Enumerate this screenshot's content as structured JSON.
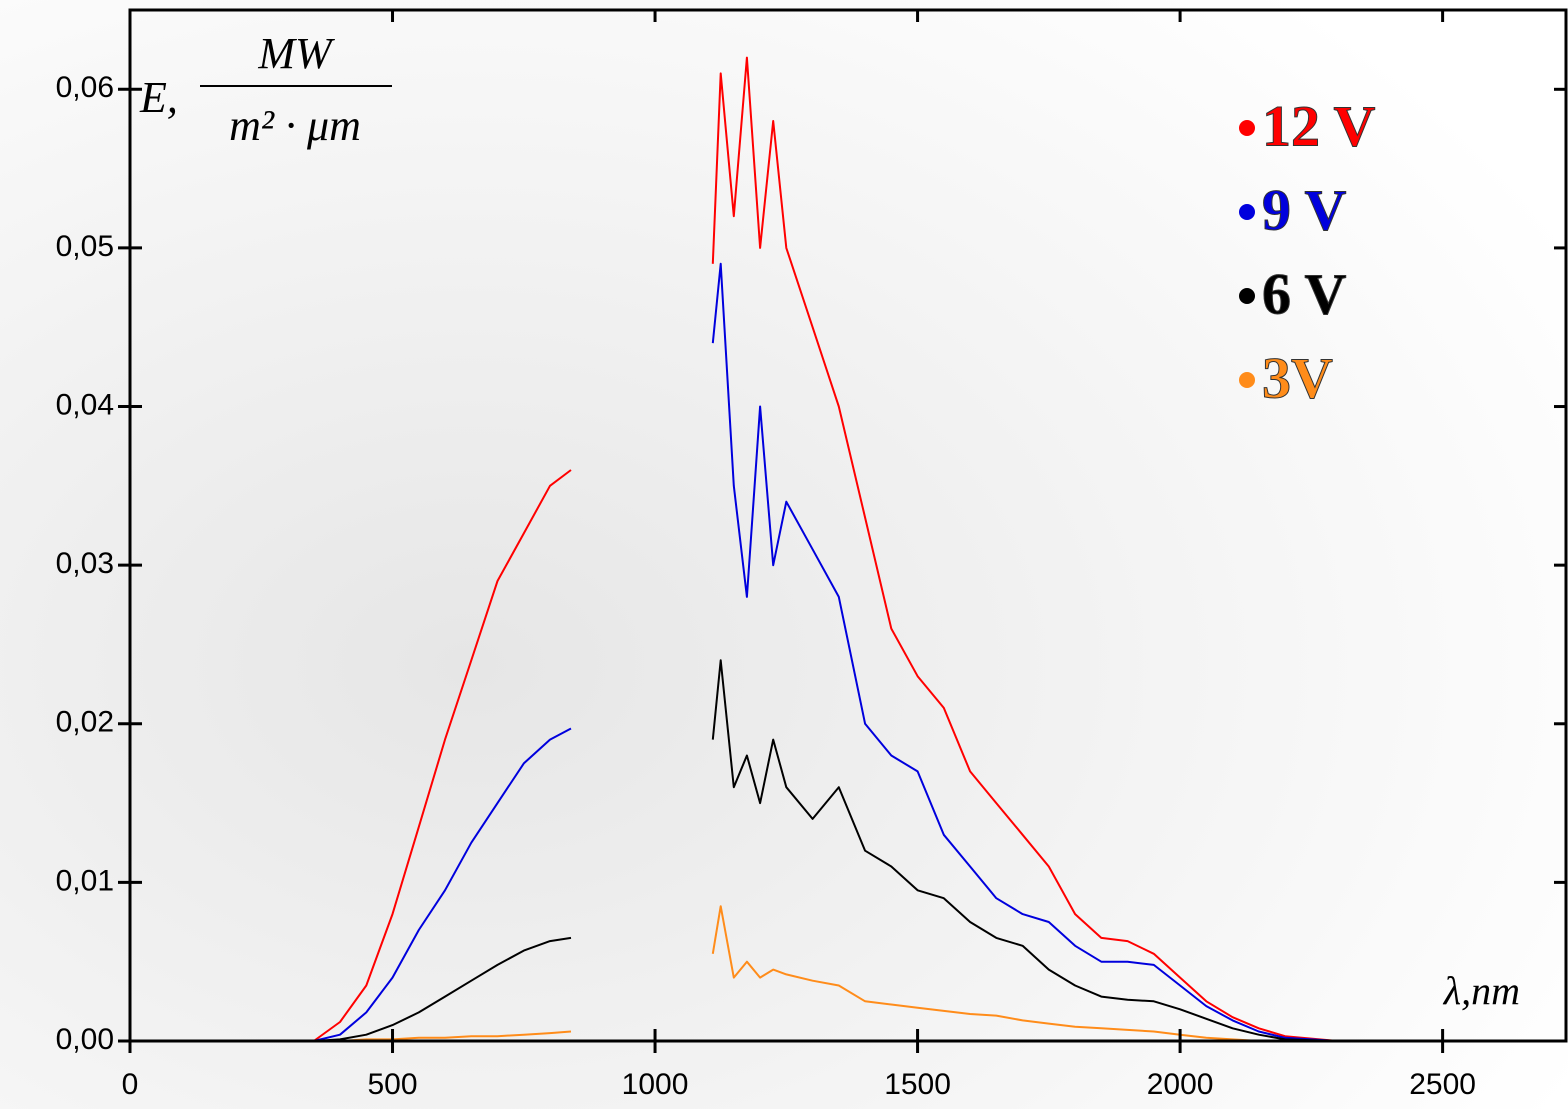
{
  "chart_data": {
    "type": "line",
    "y_label": {
      "symbol": "E,",
      "numerator": "MW",
      "denominator": "m² · μm"
    },
    "x_label": "λ,nm",
    "x": [
      350,
      400,
      450,
      500,
      550,
      600,
      650,
      700,
      750,
      800,
      840,
      975,
      1110,
      1125,
      1150,
      1175,
      1200,
      1225,
      1250,
      1300,
      1350,
      1400,
      1450,
      1500,
      1550,
      1600,
      1650,
      1700,
      1750,
      1800,
      1850,
      1900,
      1950,
      2000,
      2050,
      2100,
      2150,
      2200,
      2300,
      2400,
      2500
    ],
    "series": [
      {
        "name": "12 V",
        "color": "#ff0000",
        "values": [
          0,
          0.0012,
          0.0035,
          0.008,
          0.0135,
          0.019,
          0.024,
          0.029,
          0.032,
          0.035,
          0.036,
          null,
          0.049,
          0.061,
          0.052,
          0.062,
          0.05,
          0.058,
          0.05,
          0.045,
          0.04,
          0.033,
          0.026,
          0.023,
          0.021,
          0.017,
          0.015,
          0.013,
          0.011,
          0.008,
          0.0065,
          0.0063,
          0.0055,
          0.004,
          0.0025,
          0.0015,
          0.0008,
          0.0003,
          0,
          0,
          0
        ]
      },
      {
        "name": "9 V",
        "color": "#0000dd",
        "values": [
          0,
          0.0004,
          0.0018,
          0.004,
          0.007,
          0.0095,
          0.0125,
          0.015,
          0.0175,
          0.019,
          0.0197,
          null,
          0.044,
          0.049,
          0.035,
          0.028,
          0.04,
          0.03,
          0.034,
          0.031,
          0.028,
          0.02,
          0.018,
          0.017,
          0.013,
          0.011,
          0.009,
          0.008,
          0.0075,
          0.006,
          0.005,
          0.005,
          0.0048,
          0.0035,
          0.0022,
          0.0013,
          0.0006,
          0.0002,
          0,
          0,
          0
        ]
      },
      {
        "name": "6 V",
        "color": "#000000",
        "values": [
          0,
          0.0001,
          0.0004,
          0.001,
          0.0018,
          0.0028,
          0.0038,
          0.0048,
          0.0057,
          0.0063,
          0.0065,
          null,
          0.019,
          0.024,
          0.016,
          0.018,
          0.015,
          0.019,
          0.016,
          0.014,
          0.016,
          0.012,
          0.011,
          0.0095,
          0.009,
          0.0075,
          0.0065,
          0.006,
          0.0045,
          0.0035,
          0.0028,
          0.0026,
          0.0025,
          0.002,
          0.0014,
          0.0008,
          0.0004,
          0.0001,
          0,
          0,
          0
        ]
      },
      {
        "name": "3V",
        "color": "#ff8c1a",
        "values": [
          0,
          0,
          0.0001,
          0.0001,
          0.0002,
          0.0002,
          0.0003,
          0.0003,
          0.0004,
          0.0005,
          0.0006,
          null,
          0.0055,
          0.0085,
          0.004,
          0.005,
          0.004,
          0.0045,
          0.0042,
          0.0038,
          0.0035,
          0.0025,
          0.0023,
          0.0021,
          0.0019,
          0.0017,
          0.0016,
          0.0013,
          0.0011,
          0.0009,
          0.0008,
          0.0007,
          0.0006,
          0.0004,
          0.0002,
          0.0001,
          0,
          0,
          0,
          0,
          0
        ]
      }
    ],
    "xlim": [
      0,
      2735
    ],
    "ylim": [
      0,
      0.065
    ],
    "xticks": [
      0,
      500,
      1000,
      1500,
      2000,
      2500
    ],
    "yticks": [
      {
        "value": 0,
        "label": "0,00"
      },
      {
        "value": 0.01,
        "label": "0,01"
      },
      {
        "value": 0.02,
        "label": "0,02"
      },
      {
        "value": 0.03,
        "label": "0,03"
      },
      {
        "value": 0.04,
        "label": "0,04"
      },
      {
        "value": 0.05,
        "label": "0,05"
      },
      {
        "value": 0.06,
        "label": "0,06"
      }
    ],
    "legend": "top-right"
  }
}
